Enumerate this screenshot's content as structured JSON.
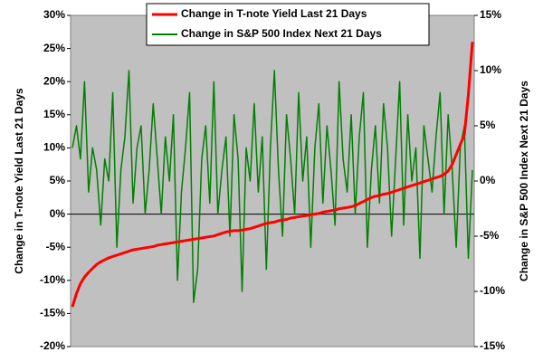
{
  "chart_data": {
    "type": "line",
    "ylim": [
      -20,
      30
    ],
    "yticks": [
      {
        "value": -20,
        "label": "-20%"
      },
      {
        "value": -15,
        "label": "-15%"
      },
      {
        "value": -10,
        "label": "-10%"
      },
      {
        "value": -5,
        "label": "-5%"
      },
      {
        "value": 0,
        "label": "0%"
      },
      {
        "value": 5,
        "label": "5%"
      },
      {
        "value": 10,
        "label": "10%"
      },
      {
        "value": 15,
        "label": "15%"
      },
      {
        "value": 20,
        "label": "20%"
      },
      {
        "value": 25,
        "label": "25%"
      },
      {
        "value": 30,
        "label": "30%"
      }
    ],
    "y2lim": [
      -15,
      15
    ],
    "y2ticks": [
      {
        "value": -15,
        "label": "-15%"
      },
      {
        "value": -10,
        "label": "-10%"
      },
      {
        "value": -5,
        "label": "-5%"
      },
      {
        "value": 0,
        "label": "0%"
      },
      {
        "value": 5,
        "label": "5%"
      },
      {
        "value": 10,
        "label": "10%"
      },
      {
        "value": 15,
        "label": "15%"
      }
    ],
    "ylabel": "Change in T-note Yield Last 21 Days",
    "y2label": "Change in S&P 500 Index Next 21 Days",
    "series": [
      {
        "name": "Change in T-note Yield Last 21 Days",
        "color": "#ff0000",
        "axis": "y",
        "values": [
          -14,
          -12,
          -10.5,
          -9.5,
          -8.8,
          -8.2,
          -7.6,
          -7.2,
          -6.9,
          -6.6,
          -6.4,
          -6.2,
          -6.0,
          -5.8,
          -5.6,
          -5.4,
          -5.3,
          -5.2,
          -5.1,
          -5.0,
          -4.9,
          -4.7,
          -4.6,
          -4.5,
          -4.4,
          -4.3,
          -4.2,
          -4.1,
          -4.0,
          -3.9,
          -3.8,
          -3.7,
          -3.6,
          -3.5,
          -3.4,
          -3.3,
          -3.1,
          -2.9,
          -2.7,
          -2.6,
          -2.5,
          -2.5,
          -2.4,
          -2.3,
          -2.2,
          -2.0,
          -1.8,
          -1.6,
          -1.4,
          -1.3,
          -1.2,
          -1.0,
          -0.9,
          -0.8,
          -0.6,
          -0.5,
          -0.4,
          -0.3,
          -0.2,
          -0.1,
          0,
          0.1,
          0.3,
          0.4,
          0.5,
          0.6,
          0.8,
          0.9,
          1.0,
          1.1,
          1.3,
          1.6,
          1.9,
          2.2,
          2.5,
          2.7,
          2.8,
          3.0,
          3.1,
          3.3,
          3.5,
          3.7,
          3.9,
          4.1,
          4.3,
          4.5,
          4.7,
          4.9,
          5.1,
          5.3,
          5.5,
          5.7,
          6.0,
          6.5,
          7.5,
          9,
          10.5,
          12,
          18,
          26
        ]
      },
      {
        "name": "Change in S&P 500 Index Next 21 Days",
        "color": "#008000",
        "axis": "y2",
        "values": [
          3,
          5,
          2,
          9,
          -1,
          3,
          1,
          -4,
          2,
          0,
          8,
          -6,
          1,
          4,
          10,
          -2,
          3,
          5,
          -3,
          1,
          7,
          2,
          -3,
          4,
          0,
          6,
          -9,
          -1,
          3,
          8,
          -11,
          -8,
          2,
          5,
          -2,
          9,
          -3,
          1,
          4,
          -5,
          6,
          2,
          -10,
          3,
          0,
          7,
          -1,
          4,
          -8,
          3,
          10,
          1,
          -5,
          6,
          2,
          -3,
          8,
          0,
          4,
          -6,
          3,
          7,
          -2,
          5,
          1,
          -4,
          9,
          2,
          -1,
          6,
          -3,
          4,
          8,
          -6,
          1,
          5,
          -2,
          7,
          3,
          -5,
          2,
          9,
          -4,
          6,
          0,
          3,
          -7,
          5,
          2,
          -1,
          4,
          8,
          -3,
          6,
          1,
          -6,
          3,
          5,
          -7,
          1
        ]
      }
    ]
  }
}
